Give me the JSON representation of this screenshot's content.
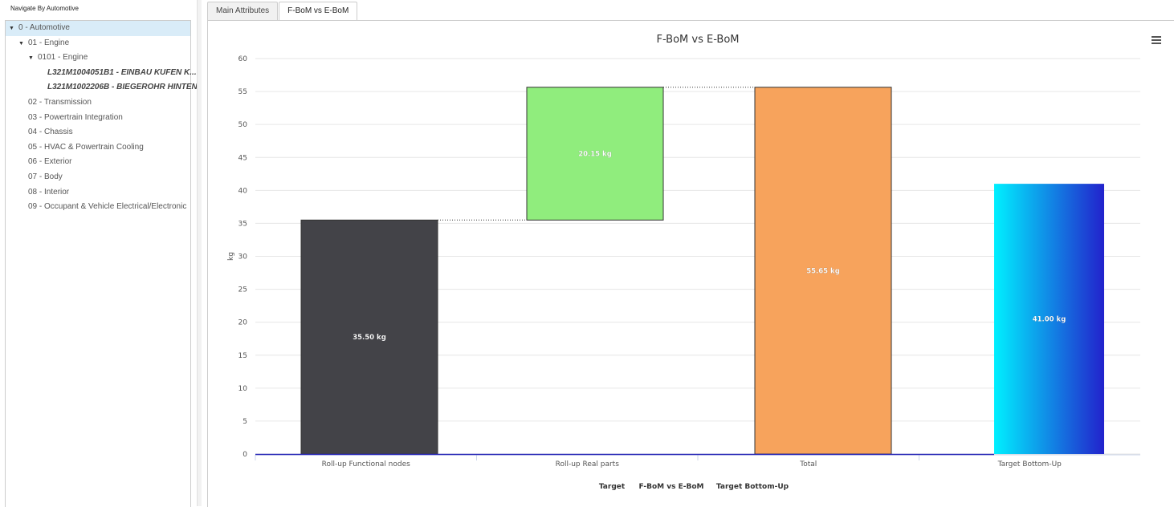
{
  "nav": {
    "title": "Navigate By Automotive",
    "items": [
      {
        "label": "0 - Automotive",
        "level": 0,
        "arrow": true,
        "selected": true
      },
      {
        "label": "01 - Engine",
        "level": 1,
        "arrow": true
      },
      {
        "label": "0101 - Engine",
        "level": 2,
        "arrow": true
      },
      {
        "label": "L321M1004051B1 - EINBAU KUFEN K...",
        "level": 3,
        "bold": true
      },
      {
        "label": "L321M1002206B - BIEGEROHR HINTEN",
        "level": 3,
        "bold": true
      },
      {
        "label": "02 - Transmission",
        "level": 1
      },
      {
        "label": "03 - Powertrain Integration",
        "level": 1
      },
      {
        "label": "04 - Chassis",
        "level": 1
      },
      {
        "label": "05 - HVAC & Powertrain Cooling",
        "level": 1
      },
      {
        "label": "06 - Exterior",
        "level": 1
      },
      {
        "label": "07 - Body",
        "level": 1
      },
      {
        "label": "08 - Interior",
        "level": 1
      },
      {
        "label": "09 - Occupant & Vehicle Electrical/Electronic",
        "level": 1
      }
    ]
  },
  "tabs": [
    {
      "label": "Main Attributes",
      "active": false
    },
    {
      "label": "F-BoM vs E-BoM",
      "active": true
    }
  ],
  "chart_data": {
    "type": "bar",
    "subtype": "waterfall",
    "title": "F-BoM vs E-BoM",
    "ylabel": "kg",
    "xlabel": "",
    "ylim": [
      0,
      60
    ],
    "yticks": [
      0,
      5,
      10,
      15,
      20,
      25,
      30,
      35,
      40,
      45,
      50,
      55,
      60
    ],
    "categories": [
      "Roll-up Functional nodes",
      "Roll-up Real parts",
      "Total",
      "Target Bottom-Up"
    ],
    "bars": [
      {
        "low": 0,
        "high": 35.5,
        "label": "35.50 kg",
        "color": "#434348"
      },
      {
        "low": 35.5,
        "high": 55.65,
        "label": "20.15 kg",
        "color": "#90ed7d"
      },
      {
        "low": 0,
        "high": 55.65,
        "label": "55.65 kg",
        "color": "#f7a35c"
      },
      {
        "low": 0,
        "high": 41.0,
        "label": "41.00 kg",
        "color": "gradient"
      }
    ],
    "target_line": 0,
    "legend": [
      "Target",
      "F-BoM vs E-BoM",
      "Target Bottom-Up"
    ],
    "legend_position": "bottom-center",
    "grid": true
  }
}
